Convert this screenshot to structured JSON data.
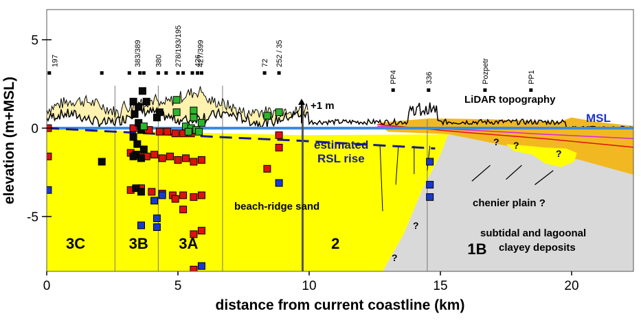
{
  "chart_data": {
    "type": "scatter",
    "title": "",
    "xlabel": "distance from current coastline (km)",
    "ylabel": "elevation (m+MSL)",
    "xlim": [
      0,
      22.5
    ],
    "ylim": [
      -8,
      6.6
    ],
    "x_ticks": [
      0,
      5,
      10,
      15,
      20
    ],
    "x_tick_labels": [
      "0",
      "5",
      "10",
      "15",
      "20"
    ],
    "y_ticks": [
      5,
      0,
      -5
    ],
    "y_tick_labels": [
      "5",
      "0",
      "-5"
    ],
    "site_labels": [
      {
        "x": 0.3,
        "text": "197"
      },
      {
        "x": 3.45,
        "text": "383/389"
      },
      {
        "x": 4.25,
        "text": "380"
      },
      {
        "x": 5.0,
        "text": "278/193/195"
      },
      {
        "x": 5.75,
        "text": "426"
      },
      {
        "x": 5.85,
        "text": "427/399"
      },
      {
        "x": 8.3,
        "text": "72"
      },
      {
        "x": 8.85,
        "text": "252 / 35"
      },
      {
        "x": 13.2,
        "text": "PP4"
      },
      {
        "x": 14.55,
        "text": "336"
      },
      {
        "x": 16.7,
        "text": "Pozpetr"
      },
      {
        "x": 18.45,
        "text": "PP1"
      }
    ],
    "site_markers_x": [
      0.1,
      2.1,
      3.15,
      3.55,
      3.7,
      4.25,
      4.55,
      5.0,
      5.2,
      5.55,
      5.75,
      5.9,
      8.3,
      8.85,
      13.2,
      14.55,
      16.7,
      18.45
    ],
    "zones": [
      {
        "label": "3C",
        "x": 1.1
      },
      {
        "label": "3B",
        "x": 3.5
      },
      {
        "label": "3A",
        "x": 5.4
      },
      {
        "label": "2",
        "x": 11.0
      },
      {
        "label": "1B",
        "x": 16.4
      }
    ],
    "annotations": {
      "lidar": "LiDAR topography",
      "plus1m": "+1 m",
      "msl": "MSL",
      "rsl_line1": "estimated",
      "rsl_line2": "RSL rise",
      "beach_ridge": "beach-ridge sand",
      "chenier": "chenier plain ?",
      "subtidal_line1": "subtidal and lagoonal",
      "subtidal_line2": "clayey deposits",
      "question_mark": "?"
    },
    "series": [
      {
        "color": "#e01010",
        "points": [
          [
            0.05,
            0.0
          ],
          [
            0.05,
            -1.6
          ],
          [
            3.2,
            -1.4
          ],
          [
            3.5,
            -1.5
          ],
          [
            3.8,
            -1.6
          ],
          [
            4.1,
            -1.5
          ],
          [
            4.4,
            -1.7
          ],
          [
            4.7,
            -1.6
          ],
          [
            5.0,
            -1.8
          ],
          [
            5.3,
            -1.7
          ],
          [
            5.6,
            -1.9
          ],
          [
            5.9,
            -1.8
          ],
          [
            3.3,
            0.0
          ],
          [
            3.6,
            -0.1
          ],
          [
            3.9,
            -0.1
          ],
          [
            4.3,
            -0.2
          ],
          [
            4.6,
            -0.2
          ],
          [
            4.9,
            -0.3
          ],
          [
            5.2,
            -0.3
          ],
          [
            5.5,
            -0.3
          ],
          [
            3.2,
            -3.5
          ],
          [
            3.6,
            -3.4
          ],
          [
            4.0,
            -3.6
          ],
          [
            4.4,
            -3.7
          ],
          [
            4.8,
            -3.8
          ],
          [
            5.2,
            -3.8
          ],
          [
            5.6,
            -3.9
          ],
          [
            5.9,
            -3.8
          ],
          [
            4.9,
            -4.0
          ],
          [
            5.2,
            -4.6
          ],
          [
            8.4,
            -2.3
          ],
          [
            8.85,
            -0.4
          ],
          [
            8.85,
            -1.1
          ],
          [
            5.6,
            -6.0
          ],
          [
            5.9,
            -5.8
          ],
          [
            5.6,
            -8.0
          ]
        ]
      },
      {
        "color": "#0a0a0a",
        "points": [
          [
            3.3,
            1.5
          ],
          [
            3.5,
            1.2
          ],
          [
            3.65,
            2.1
          ],
          [
            3.8,
            1.5
          ],
          [
            3.35,
            0.8
          ],
          [
            3.5,
            0.3
          ],
          [
            3.6,
            -0.1
          ],
          [
            3.3,
            -0.5
          ],
          [
            3.45,
            -0.9
          ],
          [
            3.7,
            -1.2
          ],
          [
            3.4,
            -1.5
          ],
          [
            3.6,
            -1.7
          ],
          [
            3.3,
            -1.6
          ],
          [
            3.4,
            -3.4
          ],
          [
            3.6,
            -3.6
          ],
          [
            4.2,
            0.6
          ],
          [
            4.3,
            0.9
          ],
          [
            2.1,
            -1.9
          ]
        ]
      },
      {
        "color": "#2db52d",
        "points": [
          [
            4.95,
            1.6
          ],
          [
            4.95,
            0.9
          ],
          [
            5.6,
            0.6
          ],
          [
            5.6,
            1.0
          ],
          [
            5.9,
            0.3
          ],
          [
            5.3,
            0.1
          ],
          [
            5.5,
            0.0
          ],
          [
            5.7,
            -0.1
          ],
          [
            5.4,
            -0.2
          ],
          [
            5.8,
            -0.2
          ],
          [
            3.7,
            0.1
          ],
          [
            8.4,
            0.7
          ],
          [
            8.85,
            0.9
          ]
        ]
      },
      {
        "color": "#1838d0",
        "points": [
          [
            0.05,
            -3.5
          ],
          [
            3.6,
            -5.5
          ],
          [
            4.2,
            -5.1
          ],
          [
            4.2,
            -5.6
          ],
          [
            4.4,
            -3.8
          ],
          [
            4.1,
            -4.1
          ],
          [
            5.9,
            -7.8
          ],
          [
            8.85,
            -3.1
          ],
          [
            14.6,
            -1.9
          ],
          [
            14.6,
            -3.2
          ],
          [
            14.6,
            -3.9
          ]
        ]
      }
    ]
  }
}
